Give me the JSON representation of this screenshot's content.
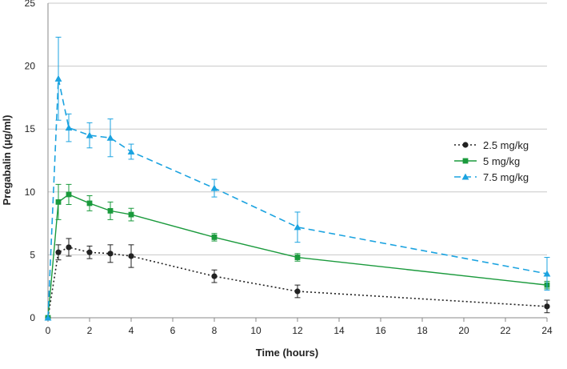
{
  "chart_data": {
    "type": "line",
    "title": "",
    "xlabel": "Time (hours)",
    "ylabel": "Pregabalin (µg/ml)",
    "xlim": [
      0,
      24
    ],
    "ylim": [
      0,
      25
    ],
    "xticks": [
      0,
      2,
      4,
      6,
      8,
      10,
      12,
      14,
      16,
      18,
      20,
      22,
      24
    ],
    "yticks": [
      0,
      5,
      10,
      15,
      20,
      25
    ],
    "grid": "horizontal",
    "legend_position": "right",
    "series": [
      {
        "name": "2.5 mg/kg",
        "color": "#222222",
        "marker": "circle",
        "line_style": "dotted",
        "x": [
          0,
          0.5,
          1,
          2,
          3,
          4,
          8,
          12,
          24
        ],
        "y": [
          0,
          5.2,
          5.6,
          5.2,
          5.1,
          4.9,
          3.3,
          2.1,
          0.9
        ],
        "error": [
          0,
          0.6,
          0.7,
          0.5,
          0.7,
          0.9,
          0.5,
          0.5,
          0.5
        ]
      },
      {
        "name": "5 mg/kg",
        "color": "#1a9a3c",
        "marker": "square",
        "line_style": "solid",
        "x": [
          0,
          0.5,
          1,
          2,
          3,
          4,
          8,
          12,
          24
        ],
        "y": [
          0,
          9.2,
          9.8,
          9.1,
          8.5,
          8.2,
          6.4,
          4.8,
          2.6
        ],
        "error": [
          0,
          1.4,
          0.8,
          0.6,
          0.7,
          0.5,
          0.3,
          0.3,
          0.3
        ]
      },
      {
        "name": "7.5 mg/kg",
        "color": "#1ba3e0",
        "marker": "triangle",
        "line_style": "dashed",
        "x": [
          0,
          0.5,
          1,
          2,
          3,
          4,
          8,
          12,
          24
        ],
        "y": [
          0,
          19.0,
          15.1,
          14.5,
          14.3,
          13.2,
          10.3,
          7.2,
          3.5
        ],
        "error": [
          0,
          3.3,
          1.1,
          1.0,
          1.5,
          0.6,
          0.7,
          1.2,
          1.3
        ]
      }
    ]
  }
}
